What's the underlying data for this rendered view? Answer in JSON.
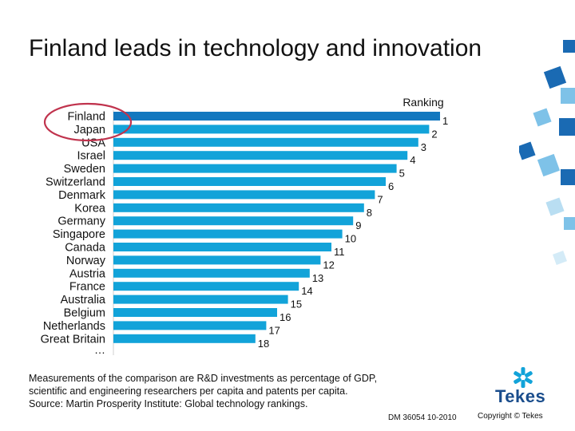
{
  "slide": {
    "title": "Finland leads in technology and innovation",
    "footnote_lines": [
      "Measurements of the comparison are R&D investments as percentage of GDP,",
      "scientific and engineering researchers per capita and patents per capita.",
      "Source: Martin Prosperity Institute: Global technology rankings."
    ],
    "doc_id": "DM 36054 10-2010",
    "copyright": "Copyright © Tekes",
    "logo_text": "Tekes"
  },
  "colors": {
    "bar": "#12a3d9",
    "bar_top": "#1378bf",
    "highlight_ring": "#c0334d",
    "decor_blue": "#1a6ab3",
    "decor_light": "#7ec2e8"
  },
  "chart_data": {
    "type": "bar",
    "orientation": "horizontal",
    "series_label": "Ranking",
    "categories": [
      "Finland",
      "Japan",
      "USA",
      "Israel",
      "Sweden",
      "Switzerland",
      "Denmark",
      "Korea",
      "Germany",
      "Singapore",
      "Canada",
      "Norway",
      "Austria",
      "France",
      "Australia",
      "Belgium",
      "Netherlands",
      "Great Britain"
    ],
    "values": [
      1,
      2,
      3,
      4,
      5,
      6,
      7,
      8,
      9,
      10,
      11,
      12,
      13,
      14,
      15,
      16,
      17,
      18
    ],
    "continuation": "…",
    "highlighted": "Finland"
  }
}
